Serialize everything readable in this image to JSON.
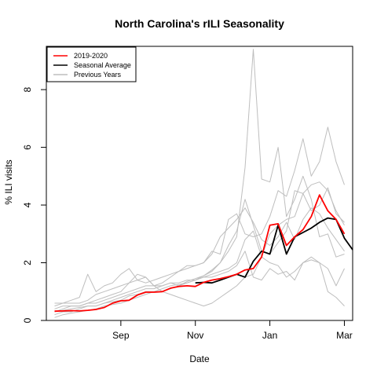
{
  "chart_data": {
    "type": "line",
    "title": "North Carolina's rILI Seasonality",
    "xlabel": "Date",
    "ylabel": "% ILI visits",
    "x_ticks": [
      {
        "label": "Sep",
        "week": 10
      },
      {
        "label": "Nov",
        "week": 19
      },
      {
        "label": "Jan",
        "week": 28
      },
      {
        "label": "Mar",
        "week": 37
      }
    ],
    "y_ticks": [
      0,
      2,
      4,
      6,
      8
    ],
    "xlim": [
      1,
      38
    ],
    "ylim": [
      0,
      9.5
    ],
    "legend_position": "top-left",
    "legend": [
      {
        "label": "2019-2020",
        "color": "#ff0000"
      },
      {
        "label": "Seasonal Average",
        "color": "#000000"
      },
      {
        "label": "Previous Years",
        "color": "#bebebe"
      }
    ],
    "series_2019_2020": {
      "name": "2019-2020",
      "color": "#ff0000",
      "x": [
        2,
        3,
        4,
        5,
        6,
        7,
        8,
        9,
        10,
        11,
        12,
        13,
        14,
        15,
        16,
        17,
        18,
        19,
        20,
        21,
        22,
        23,
        24,
        25,
        26,
        27,
        28,
        29,
        30,
        31,
        32,
        33,
        34,
        35,
        36,
        37
      ],
      "values": [
        0.32,
        0.33,
        0.34,
        0.33,
        0.35,
        0.38,
        0.45,
        0.6,
        0.68,
        0.7,
        0.88,
        0.98,
        0.98,
        1.0,
        1.12,
        1.18,
        1.2,
        1.18,
        1.32,
        1.4,
        1.45,
        1.52,
        1.6,
        1.75,
        1.8,
        2.2,
        3.3,
        3.35,
        2.6,
        2.9,
        3.15,
        3.6,
        4.35,
        3.8,
        3.5,
        3.0
      ]
    },
    "series_seasonal_average": {
      "name": "Seasonal Average",
      "color": "#000000",
      "x": [
        19,
        20,
        21,
        22,
        23,
        24,
        25,
        26,
        27,
        28,
        29,
        30,
        31,
        32,
        33,
        34,
        35,
        36,
        37,
        38
      ],
      "values": [
        1.3,
        1.32,
        1.3,
        1.4,
        1.5,
        1.6,
        1.5,
        2.05,
        2.4,
        2.3,
        3.3,
        2.3,
        2.9,
        3.05,
        3.2,
        3.4,
        3.55,
        3.5,
        2.85,
        2.45
      ]
    },
    "series_previous_years": [
      {
        "values": [
          0.3,
          0.35,
          0.4,
          0.45,
          0.5,
          0.5,
          0.6,
          0.65,
          0.7,
          0.85,
          0.9,
          1.0,
          1.0,
          1.1,
          1.2,
          1.25,
          1.3,
          1.4,
          1.55,
          1.7,
          2.0,
          2.4,
          2.9,
          5.3,
          9.4,
          4.9,
          4.8,
          6.0,
          3.6,
          4.2,
          5.0,
          4.2,
          2.9,
          3.0,
          2.2,
          2.3
        ]
      },
      {
        "values": [
          0.1,
          0.2,
          0.25,
          0.3,
          0.35,
          0.4,
          0.5,
          0.55,
          0.6,
          0.7,
          0.8,
          0.9,
          1.0,
          1.0,
          1.1,
          1.2,
          1.35,
          1.45,
          1.55,
          1.75,
          2.0,
          2.6,
          3.1,
          4.2,
          3.3,
          2.4,
          2.3,
          2.7,
          3.1,
          4.5,
          4.4,
          3.8,
          4.0,
          4.6,
          3.7,
          3.4
        ]
      },
      {
        "values": [
          0.3,
          0.4,
          0.5,
          0.5,
          0.6,
          0.7,
          0.8,
          0.9,
          1.0,
          1.3,
          1.6,
          1.5,
          1.2,
          1.3,
          1.5,
          1.7,
          1.9,
          1.9,
          2.0,
          2.4,
          2.3,
          3.5,
          3.7,
          3.0,
          2.9,
          3.0,
          3.6,
          4.5,
          4.3,
          5.2,
          6.3,
          5.0,
          5.5,
          6.7,
          5.5,
          4.7
        ]
      },
      {
        "values": [
          0.5,
          0.6,
          0.6,
          0.6,
          0.7,
          0.9,
          1.0,
          1.1,
          1.2,
          1.3,
          1.4,
          1.5,
          1.2,
          1.0,
          0.9,
          0.8,
          0.7,
          0.6,
          0.5,
          0.6,
          0.8,
          1.0,
          1.2,
          1.5,
          1.6,
          2.2,
          3.0,
          3.3,
          3.5,
          3.6,
          4.4,
          4.7,
          4.8,
          4.5,
          3.8,
          3.3
        ]
      },
      {
        "values": [
          0.2,
          0.3,
          0.3,
          0.4,
          0.5,
          0.5,
          0.6,
          0.7,
          0.8,
          0.9,
          1.0,
          1.1,
          1.1,
          1.2,
          1.3,
          1.2,
          1.3,
          1.4,
          1.5,
          1.6,
          1.7,
          1.8,
          2.0,
          2.8,
          3.1,
          2.2,
          2.0,
          1.9,
          1.5,
          1.7,
          2.0,
          2.1,
          2.0,
          1.8,
          1.2,
          1.8
        ]
      },
      {
        "values": [
          0.4,
          0.5,
          0.5,
          0.5,
          0.6,
          0.6,
          0.7,
          0.8,
          0.9,
          1.0,
          1.1,
          1.2,
          1.2,
          1.2,
          1.3,
          1.3,
          1.4,
          1.4,
          1.5,
          1.5,
          1.6,
          1.7,
          1.9,
          2.4,
          1.5,
          1.4,
          1.8,
          1.6,
          1.7,
          1.4,
          2.0,
          2.2,
          2.0,
          1.0,
          0.8,
          0.5
        ]
      },
      {
        "values": [
          0.6,
          0.6,
          0.7,
          0.8,
          1.6,
          1.0,
          1.2,
          1.3,
          1.6,
          1.8,
          1.4,
          1.3,
          1.4,
          1.5,
          1.6,
          1.7,
          1.8,
          1.9,
          2.0,
          2.3,
          2.9,
          3.2,
          3.5,
          3.9,
          3.4,
          2.8,
          2.6,
          2.9,
          3.4,
          2.8,
          3.5,
          3.9,
          3.7,
          3.2,
          2.8,
          2.4
        ]
      }
    ]
  }
}
